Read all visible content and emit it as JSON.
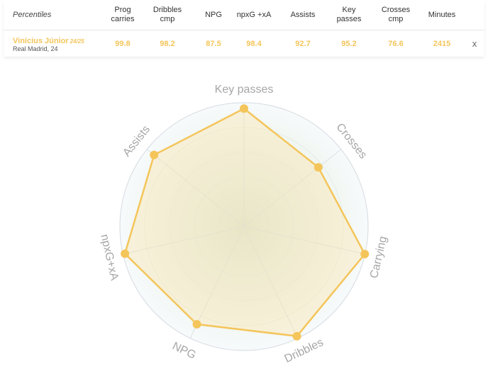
{
  "table": {
    "header_first": "Percentiles",
    "columns": [
      "Prog\ncarries",
      "Dribbles\ncmp",
      "NPG",
      "npxG +xA",
      "Assists",
      "Key\npasses",
      "Crosses\ncmp",
      "Minutes"
    ],
    "player": {
      "name": "Vinícius Júnior",
      "season": "24/25",
      "team": "Real Madrid, 24",
      "values": [
        "99.8",
        "98.2",
        "87.5",
        "98.4",
        "92.7",
        "95.2",
        "76.6",
        "2415"
      ]
    },
    "close_label": "x"
  },
  "chart_data": {
    "type": "radar",
    "axes": [
      "Key passes",
      "Crosses",
      "Carrying",
      "Dribbles",
      "NPG",
      "npxG+xA",
      "Assists"
    ],
    "values": [
      95.2,
      76.6,
      99.8,
      98.2,
      87.5,
      98.4,
      92.7
    ],
    "range": [
      0,
      100
    ],
    "colors": {
      "series": "#f4c55a",
      "fill": "#fbe7b6",
      "grid": "#d5dbe0",
      "rings": "#dde6de"
    }
  }
}
